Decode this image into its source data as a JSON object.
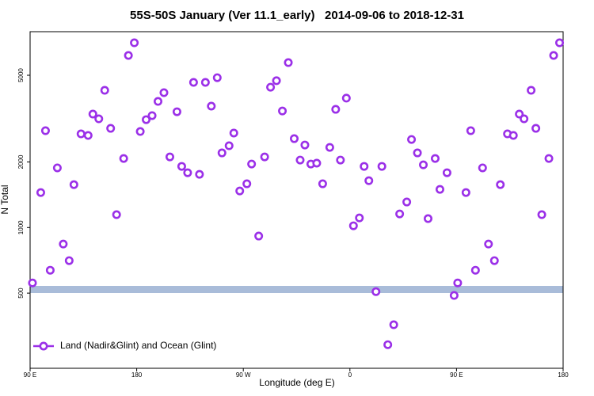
{
  "chart_data": {
    "type": "scatter",
    "title": "55S-50S January (Ver 11.1_early)   2014-09-06 to 2018-12-31",
    "x_label": "Longitude (deg E)",
    "y_label": "N Total",
    "log_y": true,
    "grid": false,
    "legend_corner": "bottom-left",
    "xlim": [
      90,
      540
    ],
    "ylim": [
      226,
      7925
    ],
    "xticks": [
      {
        "value": 90,
        "label": "90 E"
      },
      {
        "value": 180,
        "label": "180"
      },
      {
        "value": 270,
        "label": "90 W"
      },
      {
        "value": 360,
        "label": "0"
      },
      {
        "value": 450,
        "label": "90 E"
      },
      {
        "value": 540,
        "label": "180"
      }
    ],
    "yticks": [
      500,
      1000,
      2000,
      5000
    ],
    "series": [
      {
        "name": "Land (Nadir&Glint) and Ocean (Glint)",
        "color": "#9b30e8",
        "x": [
          92,
          99,
          103,
          107,
          113,
          118,
          123,
          127,
          133,
          139,
          143,
          148,
          153,
          158,
          163,
          169,
          173,
          178,
          183,
          188,
          193,
          198,
          203,
          208,
          214,
          218,
          223,
          228,
          233,
          238,
          243,
          248,
          252,
          258,
          262,
          267,
          273,
          277,
          283,
          288,
          293,
          298,
          303,
          308,
          313,
          318,
          322,
          327,
          332,
          337,
          343,
          348,
          352,
          357,
          363,
          368,
          372,
          376,
          382,
          387,
          392,
          397,
          402,
          408,
          412,
          417,
          422,
          426,
          432,
          436,
          442,
          448,
          451,
          458,
          462,
          466,
          472,
          477,
          482,
          487,
          493,
          498,
          503,
          507,
          513,
          517,
          522,
          528,
          532,
          537
        ],
        "values": [
          557,
          1448,
          2783,
          637,
          1879,
          840,
          705,
          1574,
          2691,
          2648,
          3318,
          3155,
          4265,
          2853,
          1146,
          2075,
          6165,
          7047,
          2760,
          3128,
          3264,
          3793,
          4160,
          2110,
          3400,
          1909,
          1785,
          4638,
          1755,
          4638,
          3608,
          4874,
          2201,
          2374,
          2715,
          1472,
          1588,
          1957,
          914,
          2110,
          4408,
          4720,
          3427,
          5717,
          2559,
          2041,
          2393,
          1957,
          1975,
          1588,
          2333,
          3488,
          2041,
          3926,
          1019,
          1107,
          1909,
          1641,
          508,
          1909,
          290,
          358,
          1155,
          1310,
          2537,
          2201,
          1940,
          1099,
          2075,
          1497,
          1785,
          488,
          557,
          1448,
          2783,
          637,
          1879,
          840,
          705,
          1574,
          2691,
          2648,
          3318,
          3155,
          4265,
          2853,
          1146,
          2075,
          6165,
          7047
        ]
      }
    ]
  }
}
